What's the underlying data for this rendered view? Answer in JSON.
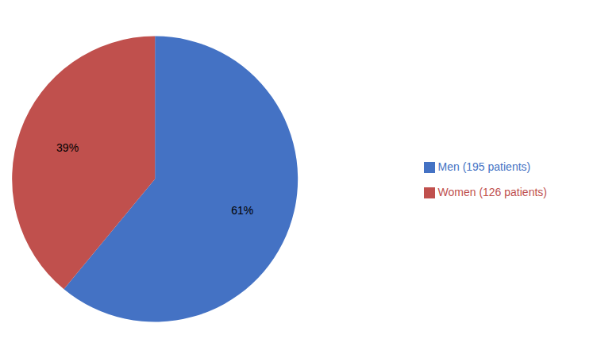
{
  "chart_data": {
    "type": "pie",
    "categories": [
      "Men (195 patients)",
      "Women (126 patients)"
    ],
    "values": [
      61,
      39
    ],
    "value_labels": [
      "61%",
      "39%"
    ],
    "colors": [
      "#4472C4",
      "#C0504D"
    ],
    "data_labels": true,
    "legend": "right"
  }
}
